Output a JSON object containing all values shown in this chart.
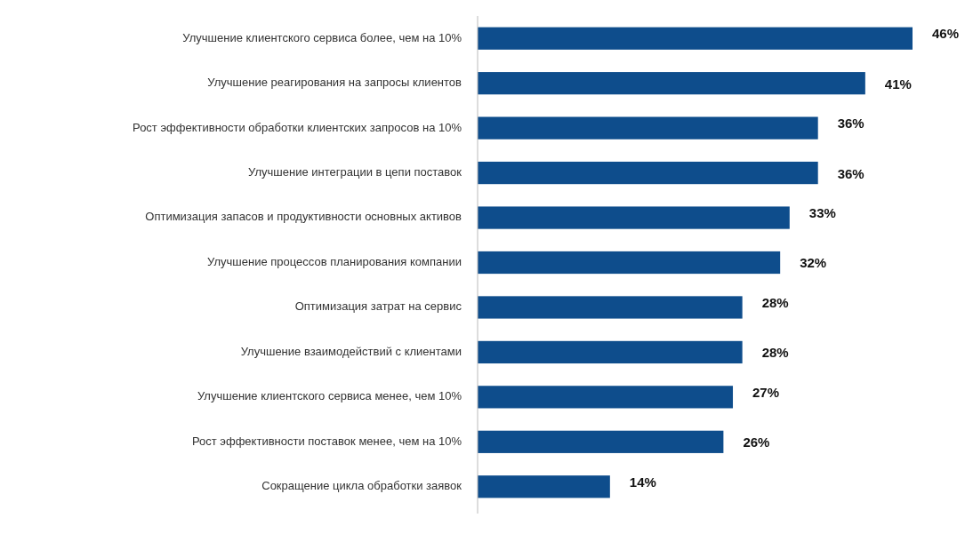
{
  "chart_data": {
    "type": "bar",
    "orientation": "horizontal",
    "categories": [
      "Улучшение клиентского сервиса более, чем на 10%",
      "Улучшение реагирования на запросы клиентов",
      "Рост эффективности обработки клиентских запросов на 10%",
      "Улучшение интеграции в цепи поставок",
      "Оптимизация запасов и продуктивности основных активов",
      "Улучшение процессов планирования компании",
      "Оптимизация затрат на сервис",
      "Улучшение взаимодействий с клиентами",
      "Улучшение клиентского сервиса менее, чем 10%",
      "Рост эффективности поставок менее, чем на 10%",
      "Сокращение цикла обработки заявок"
    ],
    "values": [
      46,
      41,
      36,
      36,
      33,
      32,
      28,
      28,
      27,
      26,
      14
    ],
    "value_labels": [
      "46%",
      "41%",
      "36%",
      "36%",
      "33%",
      "32%",
      "28%",
      "28%",
      "27%",
      "26%",
      "14%"
    ],
    "color": "#0e4d8c"
  }
}
